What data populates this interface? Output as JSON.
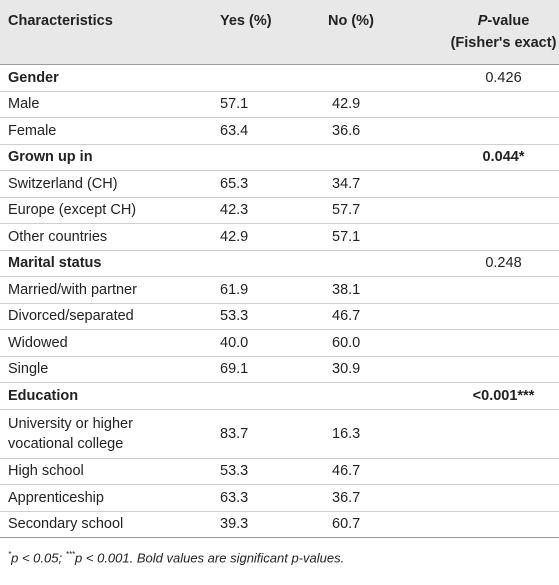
{
  "headers": {
    "characteristics": "Characteristics",
    "yes": "Yes (%)",
    "no": "No (%)",
    "pvalue_italic": "P",
    "pvalue_rest": "-value (Fisher's exact)"
  },
  "rows": [
    {
      "name": "Gender",
      "yes": "",
      "no": "",
      "p": "0.426",
      "group": true,
      "sig": false
    },
    {
      "name": "Male",
      "yes": "57.1",
      "no": "42.9",
      "p": "",
      "group": false,
      "sig": false
    },
    {
      "name": "Female",
      "yes": "63.4",
      "no": "36.6",
      "p": "",
      "group": false,
      "sig": false
    },
    {
      "name": "Grown up in",
      "yes": "",
      "no": "",
      "p": "0.044*",
      "group": true,
      "sig": true
    },
    {
      "name": "Switzerland (CH)",
      "yes": "65.3",
      "no": "34.7",
      "p": "",
      "group": false,
      "sig": false
    },
    {
      "name": "Europe (except CH)",
      "yes": "42.3",
      "no": "57.7",
      "p": "",
      "group": false,
      "sig": false
    },
    {
      "name": "Other countries",
      "yes": "42.9",
      "no": "57.1",
      "p": "",
      "group": false,
      "sig": false
    },
    {
      "name": "Marital status",
      "yes": "",
      "no": "",
      "p": "0.248",
      "group": true,
      "sig": false
    },
    {
      "name": "Married/with partner",
      "yes": "61.9",
      "no": "38.1",
      "p": "",
      "group": false,
      "sig": false
    },
    {
      "name": "Divorced/separated",
      "yes": "53.3",
      "no": "46.7",
      "p": "",
      "group": false,
      "sig": false
    },
    {
      "name": "Widowed",
      "yes": "40.0",
      "no": "60.0",
      "p": "",
      "group": false,
      "sig": false
    },
    {
      "name": "Single",
      "yes": "69.1",
      "no": "30.9",
      "p": "",
      "group": false,
      "sig": false
    },
    {
      "name": "Education",
      "yes": "",
      "no": "",
      "p": "<0.001***",
      "group": true,
      "sig": true
    },
    {
      "name": "University or higher vocational college",
      "yes": "83.7",
      "no": "16.3",
      "p": "",
      "group": false,
      "sig": false,
      "tall": true
    },
    {
      "name": "High school",
      "yes": "53.3",
      "no": "46.7",
      "p": "",
      "group": false,
      "sig": false
    },
    {
      "name": "Apprenticeship",
      "yes": "63.3",
      "no": "36.7",
      "p": "",
      "group": false,
      "sig": false
    },
    {
      "name": "Secondary school",
      "yes": "39.3",
      "no": "60.7",
      "p": "",
      "group": false,
      "sig": false
    }
  ],
  "footnote": {
    "mark1": "*",
    "text1": "p < 0.05; ",
    "mark2": "***",
    "text2": "p < 0.001. Bold values are significant p-values."
  }
}
